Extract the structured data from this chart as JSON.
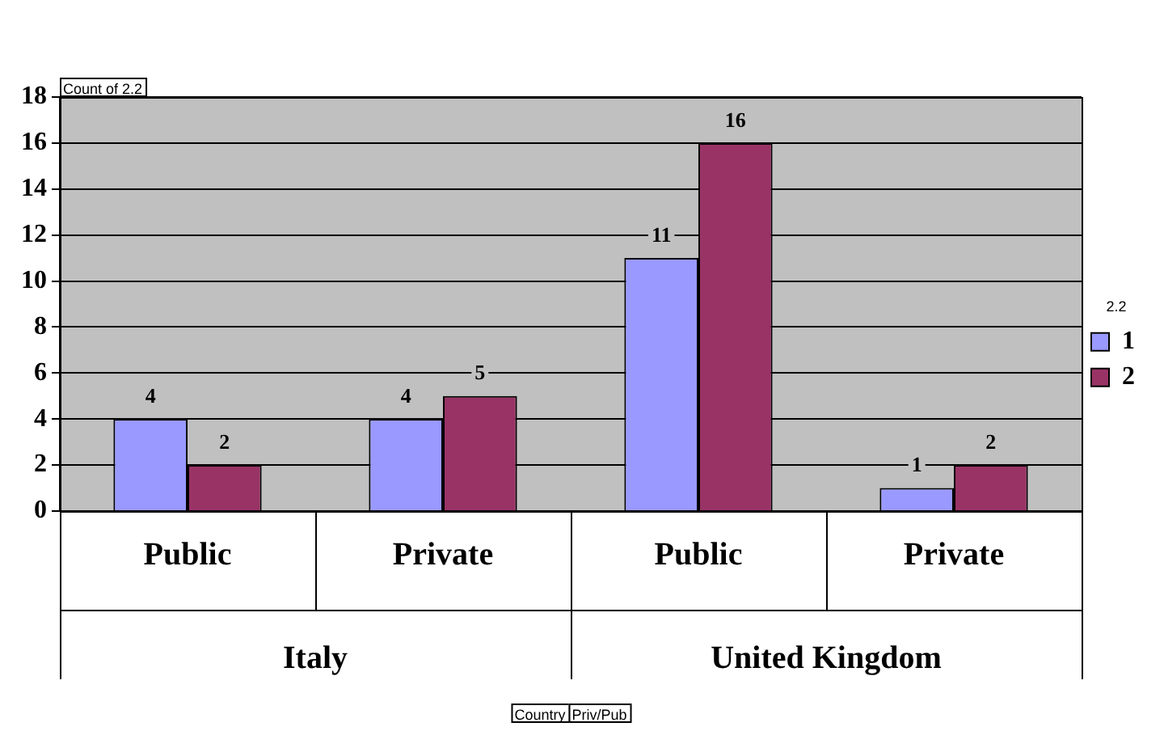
{
  "chart_data": {
    "type": "bar",
    "ylabel": "Count of 2.2",
    "legend_title": "2.2",
    "categories": [
      "Public",
      "Private",
      "Public",
      "Private"
    ],
    "series": [
      {
        "name": "1",
        "color": "#9999ff",
        "values": [
          4,
          4,
          11,
          1
        ]
      },
      {
        "name": "2",
        "color": "#993366",
        "values": [
          2,
          5,
          16,
          2
        ]
      }
    ],
    "ylim": [
      0,
      18
    ],
    "yticks": [
      0,
      2,
      4,
      6,
      8,
      10,
      12,
      14,
      16,
      18
    ],
    "grid": "y",
    "legend": "right",
    "data_labels": true,
    "annotations": [
      "Italy",
      "United Kingdom",
      "Country",
      "Priv/Pub"
    ]
  }
}
